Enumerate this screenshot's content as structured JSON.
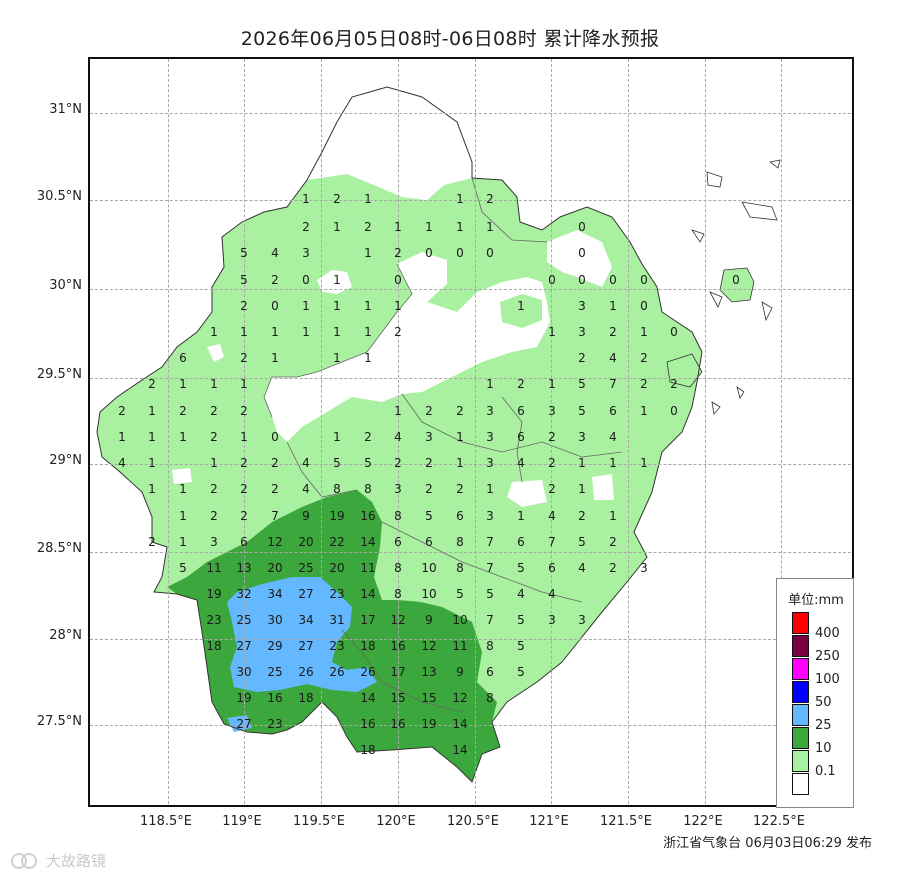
{
  "title": "2026年06月05日08时-06日08时 累计降水预报",
  "source": "浙江省气象台 06月03日06:29 发布",
  "watermark": "大故路镜",
  "lat_labels": [
    "31°N",
    "30.5°N",
    "30°N",
    "29.5°N",
    "29°N",
    "28.5°N",
    "28°N",
    "27.5°N"
  ],
  "lon_labels": [
    "118.5°E",
    "119°E",
    "119.5°E",
    "120°E",
    "120.5°E",
    "121°E",
    "121.5°E",
    "122°E",
    "122.5°E"
  ],
  "legend": {
    "title": "单位:mm",
    "items": [
      {
        "label": "400",
        "color": "#ff0000"
      },
      {
        "label": "250",
        "color": "#7a0040"
      },
      {
        "label": "100",
        "color": "#ff00ff"
      },
      {
        "label": "50",
        "color": "#0000ff"
      },
      {
        "label": "25",
        "color": "#63b8ff"
      },
      {
        "label": "10",
        "color": "#3ca73c"
      },
      {
        "label": "0.1",
        "color": "#a9f0a0"
      },
      {
        "label": "",
        "color": "#ffffff"
      }
    ]
  },
  "stations": [
    [
      "1",
      304,
      198
    ],
    [
      "2",
      335,
      198
    ],
    [
      "1",
      366,
      198
    ],
    [
      "1",
      458,
      198
    ],
    [
      "2",
      488,
      198
    ],
    [
      "2",
      304,
      226
    ],
    [
      "1",
      335,
      226
    ],
    [
      "2",
      366,
      226
    ],
    [
      "1",
      396,
      226
    ],
    [
      "1",
      427,
      226
    ],
    [
      "1",
      458,
      226
    ],
    [
      "1",
      488,
      226
    ],
    [
      "0",
      580,
      226
    ],
    [
      "5",
      242,
      252
    ],
    [
      "4",
      273,
      252
    ],
    [
      "3",
      304,
      252
    ],
    [
      "1",
      366,
      252
    ],
    [
      "2",
      396,
      252
    ],
    [
      "0",
      427,
      252
    ],
    [
      "0",
      458,
      252
    ],
    [
      "0",
      488,
      252
    ],
    [
      "0",
      580,
      252
    ],
    [
      "5",
      242,
      279
    ],
    [
      "2",
      273,
      279
    ],
    [
      "0",
      304,
      279
    ],
    [
      "1",
      335,
      279
    ],
    [
      "0",
      396,
      279
    ],
    [
      "0",
      550,
      279
    ],
    [
      "0",
      580,
      279
    ],
    [
      "0",
      611,
      279
    ],
    [
      "0",
      642,
      279
    ],
    [
      "0",
      734,
      279
    ],
    [
      "2",
      242,
      305
    ],
    [
      "0",
      273,
      305
    ],
    [
      "1",
      304,
      305
    ],
    [
      "1",
      335,
      305
    ],
    [
      "1",
      366,
      305
    ],
    [
      "1",
      396,
      305
    ],
    [
      "1",
      519,
      305
    ],
    [
      "3",
      580,
      305
    ],
    [
      "1",
      611,
      305
    ],
    [
      "0",
      642,
      305
    ],
    [
      "1",
      212,
      331
    ],
    [
      "1",
      242,
      331
    ],
    [
      "1",
      273,
      331
    ],
    [
      "1",
      304,
      331
    ],
    [
      "1",
      335,
      331
    ],
    [
      "1",
      366,
      331
    ],
    [
      "2",
      396,
      331
    ],
    [
      "1",
      550,
      331
    ],
    [
      "3",
      580,
      331
    ],
    [
      "2",
      611,
      331
    ],
    [
      "1",
      642,
      331
    ],
    [
      "0",
      672,
      331
    ],
    [
      "6",
      181,
      357
    ],
    [
      "2",
      242,
      357
    ],
    [
      "1",
      273,
      357
    ],
    [
      "1",
      335,
      357
    ],
    [
      "1",
      366,
      357
    ],
    [
      "2",
      580,
      357
    ],
    [
      "4",
      611,
      357
    ],
    [
      "2",
      642,
      357
    ],
    [
      "2",
      150,
      383
    ],
    [
      "1",
      181,
      383
    ],
    [
      "1",
      212,
      383
    ],
    [
      "1",
      242,
      383
    ],
    [
      "1",
      488,
      383
    ],
    [
      "2",
      519,
      383
    ],
    [
      "1",
      550,
      383
    ],
    [
      "5",
      580,
      383
    ],
    [
      "7",
      611,
      383
    ],
    [
      "2",
      642,
      383
    ],
    [
      "2",
      672,
      383
    ],
    [
      "2",
      120,
      410
    ],
    [
      "1",
      150,
      410
    ],
    [
      "2",
      181,
      410
    ],
    [
      "2",
      212,
      410
    ],
    [
      "2",
      242,
      410
    ],
    [
      "1",
      396,
      410
    ],
    [
      "2",
      427,
      410
    ],
    [
      "2",
      458,
      410
    ],
    [
      "3",
      488,
      410
    ],
    [
      "6",
      519,
      410
    ],
    [
      "3",
      550,
      410
    ],
    [
      "5",
      580,
      410
    ],
    [
      "6",
      611,
      410
    ],
    [
      "1",
      642,
      410
    ],
    [
      "0",
      672,
      410
    ],
    [
      "1",
      120,
      436
    ],
    [
      "1",
      150,
      436
    ],
    [
      "1",
      181,
      436
    ],
    [
      "2",
      212,
      436
    ],
    [
      "1",
      242,
      436
    ],
    [
      "0",
      273,
      436
    ],
    [
      "1",
      335,
      436
    ],
    [
      "2",
      366,
      436
    ],
    [
      "4",
      396,
      436
    ],
    [
      "3",
      427,
      436
    ],
    [
      "1",
      458,
      436
    ],
    [
      "3",
      488,
      436
    ],
    [
      "6",
      519,
      436
    ],
    [
      "2",
      550,
      436
    ],
    [
      "3",
      580,
      436
    ],
    [
      "4",
      611,
      436
    ],
    [
      "4",
      120,
      462
    ],
    [
      "1",
      150,
      462
    ],
    [
      "1",
      212,
      462
    ],
    [
      "2",
      242,
      462
    ],
    [
      "2",
      273,
      462
    ],
    [
      "4",
      304,
      462
    ],
    [
      "5",
      335,
      462
    ],
    [
      "5",
      366,
      462
    ],
    [
      "2",
      396,
      462
    ],
    [
      "2",
      427,
      462
    ],
    [
      "1",
      458,
      462
    ],
    [
      "3",
      488,
      462
    ],
    [
      "4",
      519,
      462
    ],
    [
      "2",
      550,
      462
    ],
    [
      "1",
      580,
      462
    ],
    [
      "1",
      611,
      462
    ],
    [
      "1",
      642,
      462
    ],
    [
      "1",
      150,
      488
    ],
    [
      "1",
      181,
      488
    ],
    [
      "2",
      212,
      488
    ],
    [
      "2",
      242,
      488
    ],
    [
      "2",
      273,
      488
    ],
    [
      "4",
      304,
      488
    ],
    [
      "8",
      335,
      488
    ],
    [
      "8",
      366,
      488
    ],
    [
      "3",
      396,
      488
    ],
    [
      "2",
      427,
      488
    ],
    [
      "2",
      458,
      488
    ],
    [
      "1",
      488,
      488
    ],
    [
      "2",
      550,
      488
    ],
    [
      "1",
      580,
      488
    ],
    [
      "1",
      181,
      515
    ],
    [
      "2",
      212,
      515
    ],
    [
      "2",
      242,
      515
    ],
    [
      "7",
      273,
      515
    ],
    [
      "9",
      304,
      515
    ],
    [
      "19",
      335,
      515
    ],
    [
      "16",
      366,
      515
    ],
    [
      "8",
      396,
      515
    ],
    [
      "5",
      427,
      515
    ],
    [
      "6",
      458,
      515
    ],
    [
      "3",
      488,
      515
    ],
    [
      "1",
      519,
      515
    ],
    [
      "4",
      550,
      515
    ],
    [
      "2",
      580,
      515
    ],
    [
      "1",
      611,
      515
    ],
    [
      "2",
      150,
      541
    ],
    [
      "1",
      181,
      541
    ],
    [
      "3",
      212,
      541
    ],
    [
      "6",
      242,
      541
    ],
    [
      "12",
      273,
      541
    ],
    [
      "20",
      304,
      541
    ],
    [
      "22",
      335,
      541
    ],
    [
      "14",
      366,
      541
    ],
    [
      "6",
      396,
      541
    ],
    [
      "6",
      427,
      541
    ],
    [
      "8",
      458,
      541
    ],
    [
      "7",
      488,
      541
    ],
    [
      "6",
      519,
      541
    ],
    [
      "7",
      550,
      541
    ],
    [
      "5",
      580,
      541
    ],
    [
      "2",
      611,
      541
    ],
    [
      "5",
      181,
      567
    ],
    [
      "11",
      212,
      567
    ],
    [
      "13",
      242,
      567
    ],
    [
      "20",
      273,
      567
    ],
    [
      "25",
      304,
      567
    ],
    [
      "20",
      335,
      567
    ],
    [
      "11",
      366,
      567
    ],
    [
      "8",
      396,
      567
    ],
    [
      "10",
      427,
      567
    ],
    [
      "8",
      458,
      567
    ],
    [
      "7",
      488,
      567
    ],
    [
      "5",
      519,
      567
    ],
    [
      "6",
      550,
      567
    ],
    [
      "4",
      580,
      567
    ],
    [
      "2",
      611,
      567
    ],
    [
      "3",
      642,
      567
    ],
    [
      "19",
      212,
      593
    ],
    [
      "32",
      242,
      593
    ],
    [
      "34",
      273,
      593
    ],
    [
      "27",
      304,
      593
    ],
    [
      "23",
      335,
      593
    ],
    [
      "14",
      366,
      593
    ],
    [
      "8",
      396,
      593
    ],
    [
      "10",
      427,
      593
    ],
    [
      "5",
      458,
      593
    ],
    [
      "5",
      488,
      593
    ],
    [
      "4",
      519,
      593
    ],
    [
      "4",
      550,
      593
    ],
    [
      "23",
      212,
      619
    ],
    [
      "25",
      242,
      619
    ],
    [
      "30",
      273,
      619
    ],
    [
      "34",
      304,
      619
    ],
    [
      "31",
      335,
      619
    ],
    [
      "17",
      366,
      619
    ],
    [
      "12",
      396,
      619
    ],
    [
      "9",
      427,
      619
    ],
    [
      "10",
      458,
      619
    ],
    [
      "7",
      488,
      619
    ],
    [
      "5",
      519,
      619
    ],
    [
      "3",
      550,
      619
    ],
    [
      "3",
      580,
      619
    ],
    [
      "18",
      212,
      645
    ],
    [
      "27",
      242,
      645
    ],
    [
      "29",
      273,
      645
    ],
    [
      "27",
      304,
      645
    ],
    [
      "23",
      335,
      645
    ],
    [
      "18",
      366,
      645
    ],
    [
      "16",
      396,
      645
    ],
    [
      "12",
      427,
      645
    ],
    [
      "11",
      458,
      645
    ],
    [
      "8",
      488,
      645
    ],
    [
      "5",
      519,
      645
    ],
    [
      "30",
      242,
      671
    ],
    [
      "25",
      273,
      671
    ],
    [
      "26",
      304,
      671
    ],
    [
      "26",
      335,
      671
    ],
    [
      "26",
      366,
      671
    ],
    [
      "17",
      396,
      671
    ],
    [
      "13",
      427,
      671
    ],
    [
      "9",
      458,
      671
    ],
    [
      "6",
      488,
      671
    ],
    [
      "5",
      519,
      671
    ],
    [
      "19",
      242,
      697
    ],
    [
      "16",
      273,
      697
    ],
    [
      "18",
      304,
      697
    ],
    [
      "14",
      366,
      697
    ],
    [
      "15",
      396,
      697
    ],
    [
      "15",
      427,
      697
    ],
    [
      "12",
      458,
      697
    ],
    [
      "8",
      488,
      697
    ],
    [
      "27",
      242,
      723
    ],
    [
      "23",
      273,
      723
    ],
    [
      "16",
      366,
      723
    ],
    [
      "16",
      396,
      723
    ],
    [
      "19",
      427,
      723
    ],
    [
      "14",
      458,
      723
    ],
    [
      "18",
      366,
      749
    ],
    [
      "14",
      458,
      749
    ]
  ]
}
